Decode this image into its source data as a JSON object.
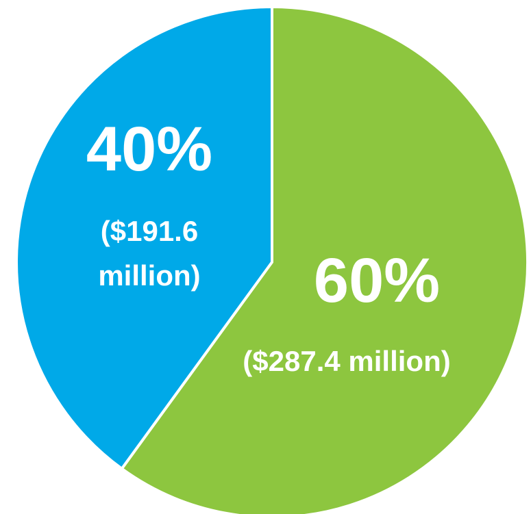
{
  "chart_data": {
    "type": "pie",
    "slices": [
      {
        "label": "60%",
        "value": 60,
        "amount": "($287.4 million)",
        "color": "#8dc63f"
      },
      {
        "label": "40%",
        "value": 40,
        "amount_lines": [
          "($191.6",
          "million)"
        ],
        "color": "#00a9e8"
      }
    ],
    "legend": "none"
  }
}
